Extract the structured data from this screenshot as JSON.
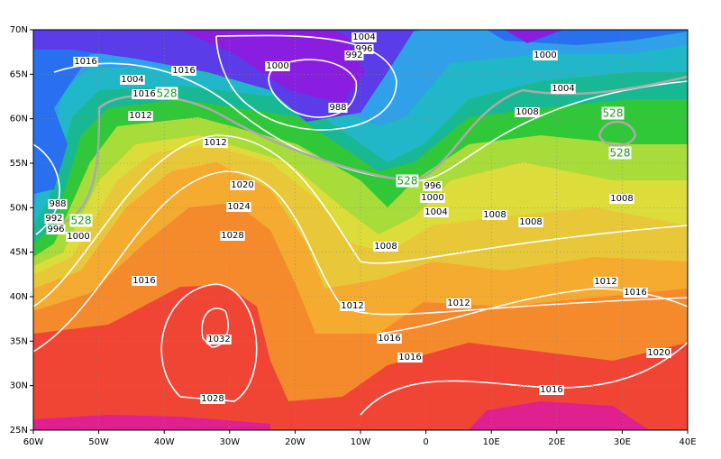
{
  "map": {
    "lat_labels": [
      "70N",
      "65N",
      "60N",
      "55N",
      "50N",
      "45N",
      "40N",
      "35N",
      "30N",
      "25N"
    ],
    "lon_labels": [
      "60W",
      "50W",
      "40W",
      "30W",
      "20W",
      "10W",
      "0",
      "10E",
      "20E",
      "30E",
      "40E"
    ],
    "contour_labels": [
      "1004",
      "996",
      "992",
      "1016",
      "1016",
      "1000",
      "1004",
      "1016",
      "988",
      "1012",
      "1000",
      "1004",
      "1008",
      "1012",
      "1020",
      "1024",
      "1028",
      "988",
      "992",
      "996",
      "1000",
      "996",
      "1000",
      "1004",
      "1008",
      "1008",
      "1008",
      "1008",
      "1016",
      "1012",
      "1012",
      "1012",
      "1016",
      "1032",
      "1016",
      "1016",
      "1016",
      "1028",
      "1020"
    ],
    "thickness_labels": [
      "528",
      "528",
      "528",
      "528",
      "528"
    ]
  }
}
